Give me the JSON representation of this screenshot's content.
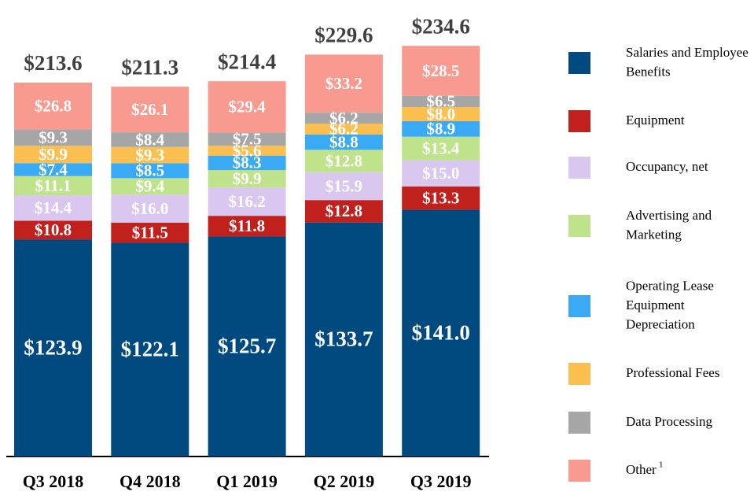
{
  "chart_data": {
    "type": "stacked_bar",
    "categories": [
      "Q3 2018",
      "Q4 2018",
      "Q1 2019",
      "Q2 2019",
      "Q3 2019"
    ],
    "ylim": [
      0,
      250
    ],
    "series": [
      {
        "name": "Salaries and Employee Benefits",
        "color": "#004a7f",
        "values": [
          123.9,
          122.1,
          125.7,
          133.7,
          141.0
        ],
        "value_labels": [
          "$123.9",
          "$122.1",
          "$125.7",
          "$133.7",
          "$141.0"
        ]
      },
      {
        "name": "Equipment",
        "color": "#c0211c",
        "values": [
          10.8,
          11.5,
          11.8,
          12.8,
          13.3
        ],
        "value_labels": [
          "$10.8",
          "$11.5",
          "$11.8",
          "$12.8",
          "$13.3"
        ]
      },
      {
        "name": "Occupancy, net",
        "color": "#d9c7f0",
        "values": [
          14.4,
          16.0,
          16.2,
          15.9,
          15.0
        ],
        "value_labels": [
          "$14.4",
          "$16.0",
          "$16.2",
          "$15.9",
          "$15.0"
        ]
      },
      {
        "name": "Advertising and Marketing",
        "color": "#bfe38a",
        "values": [
          11.1,
          9.4,
          9.9,
          12.8,
          13.4
        ],
        "value_labels": [
          "$11.1",
          "$9.4",
          "$9.9",
          "$12.8",
          "$13.4"
        ]
      },
      {
        "name": "Operating Lease Equipment Depreciation",
        "color": "#3aaaf5",
        "values": [
          7.4,
          8.5,
          8.3,
          8.8,
          8.9
        ],
        "value_labels": [
          "$7.4",
          "$8.5",
          "$8.3",
          "$8.8",
          "$8.9"
        ]
      },
      {
        "name": "Professional Fees",
        "color": "#fbbf4f",
        "values": [
          9.9,
          9.3,
          5.6,
          6.2,
          8.0
        ],
        "value_labels": [
          "$9.9",
          "$9.3",
          "$5.6",
          "$6.2",
          "$8.0"
        ]
      },
      {
        "name": "Data Processing",
        "color": "#a6a6a6",
        "values": [
          9.3,
          8.4,
          7.5,
          6.2,
          6.5
        ],
        "value_labels": [
          "$9.3",
          "$8.4",
          "$7.5",
          "$6.2",
          "$6.5"
        ]
      },
      {
        "name": "Other",
        "note_ref": "1",
        "color": "#f99a90",
        "values": [
          26.8,
          26.1,
          29.4,
          33.2,
          28.5
        ],
        "value_labels": [
          "$26.8",
          "$26.1",
          "$29.4",
          "$33.2",
          "$28.5"
        ]
      }
    ],
    "totals": {
      "values": [
        213.6,
        211.3,
        214.4,
        229.6,
        234.6
      ],
      "value_labels": [
        "$213.6",
        "$211.3",
        "$214.4",
        "$229.6",
        "$234.6"
      ]
    }
  }
}
